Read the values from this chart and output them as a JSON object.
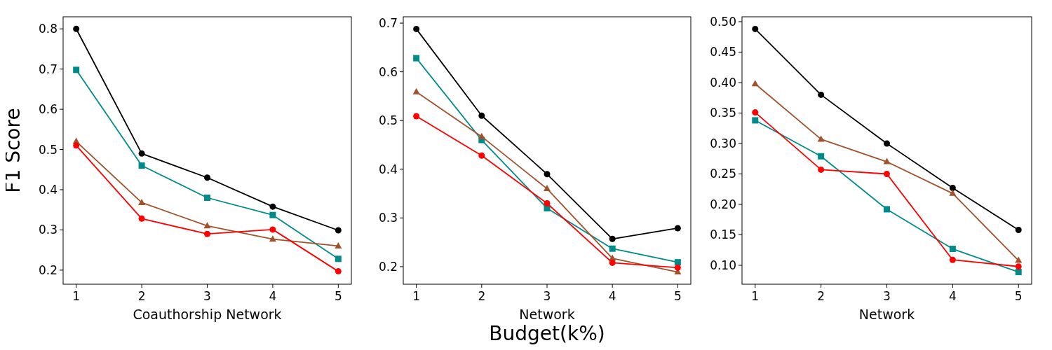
{
  "chart_data": [
    {
      "type": "line",
      "xlabel": "Coauthorship Network",
      "ylabel": "F1 Score",
      "x": [
        1,
        2,
        3,
        4,
        5
      ],
      "xlim": [
        0.8,
        5.2
      ],
      "xticks": [
        1,
        2,
        3,
        4,
        5
      ],
      "ylim": [
        0.165,
        0.83
      ],
      "yticks": [
        {
          "value": 0.2,
          "label": "0.2"
        },
        {
          "value": 0.3,
          "label": "0.3"
        },
        {
          "value": 0.4,
          "label": "0.4"
        },
        {
          "value": 0.5,
          "label": "0.5"
        },
        {
          "value": 0.6,
          "label": "0.6"
        },
        {
          "value": 0.7,
          "label": "0.7"
        },
        {
          "value": 0.8,
          "label": "0.8"
        }
      ],
      "grid": false,
      "series": [
        {
          "color": "#000000",
          "marker": "circle",
          "values": [
            0.8,
            0.49,
            0.43,
            0.358,
            0.299
          ]
        },
        {
          "color": "#008b8b",
          "marker": "square",
          "values": [
            0.698,
            0.46,
            0.38,
            0.337,
            0.228
          ]
        },
        {
          "color": "#a0522d",
          "marker": "triangle",
          "values": [
            0.52,
            0.368,
            0.31,
            0.277,
            0.26
          ]
        },
        {
          "color": "#ff0000",
          "marker": "circle",
          "values": [
            0.51,
            0.328,
            0.29,
            0.301,
            0.197
          ]
        }
      ]
    },
    {
      "type": "line",
      "xlabel": "Network",
      "x": [
        1,
        2,
        3,
        4,
        5
      ],
      "xlim": [
        0.8,
        5.2
      ],
      "xticks": [
        1,
        2,
        3,
        4,
        5
      ],
      "ylim": [
        0.164,
        0.713
      ],
      "yticks": [
        {
          "value": 0.2,
          "label": "0.2"
        },
        {
          "value": 0.3,
          "label": "0.3"
        },
        {
          "value": 0.4,
          "label": "0.4"
        },
        {
          "value": 0.5,
          "label": "0.5"
        },
        {
          "value": 0.6,
          "label": "0.6"
        },
        {
          "value": 0.7,
          "label": "0.7"
        }
      ],
      "grid": false,
      "annotations": [
        "Budget(k%)"
      ],
      "series": [
        {
          "color": "#000000",
          "marker": "circle",
          "values": [
            0.688,
            0.51,
            0.39,
            0.257,
            0.279
          ]
        },
        {
          "color": "#008b8b",
          "marker": "square",
          "values": [
            0.628,
            0.46,
            0.32,
            0.237,
            0.209
          ]
        },
        {
          "color": "#a0522d",
          "marker": "triangle",
          "values": [
            0.559,
            0.467,
            0.36,
            0.217,
            0.189
          ]
        },
        {
          "color": "#ff0000",
          "marker": "circle",
          "values": [
            0.509,
            0.428,
            0.33,
            0.208,
            0.198
          ]
        }
      ]
    },
    {
      "type": "line",
      "xlabel": "Network",
      "x": [
        1,
        2,
        3,
        4,
        5
      ],
      "xlim": [
        0.8,
        5.2
      ],
      "xticks": [
        1,
        2,
        3,
        4,
        5
      ],
      "ylim": [
        0.069,
        0.508
      ],
      "yticks": [
        {
          "value": 0.1,
          "label": "0.10"
        },
        {
          "value": 0.15,
          "label": "0.15"
        },
        {
          "value": 0.2,
          "label": "0.20"
        },
        {
          "value": 0.25,
          "label": "0.25"
        },
        {
          "value": 0.3,
          "label": "0.30"
        },
        {
          "value": 0.35,
          "label": "0.35"
        },
        {
          "value": 0.4,
          "label": "0.40"
        },
        {
          "value": 0.45,
          "label": "0.45"
        },
        {
          "value": 0.5,
          "label": "0.50"
        }
      ],
      "grid": false,
      "series": [
        {
          "color": "#000000",
          "marker": "circle",
          "values": [
            0.488,
            0.38,
            0.3,
            0.227,
            0.158
          ]
        },
        {
          "color": "#008b8b",
          "marker": "square",
          "values": [
            0.338,
            0.279,
            0.192,
            0.127,
            0.089
          ]
        },
        {
          "color": "#a0522d",
          "marker": "triangle",
          "values": [
            0.398,
            0.307,
            0.27,
            0.218,
            0.108
          ]
        },
        {
          "color": "#ff0000",
          "marker": "circle",
          "values": [
            0.351,
            0.257,
            0.25,
            0.109,
            0.098
          ]
        }
      ]
    }
  ]
}
